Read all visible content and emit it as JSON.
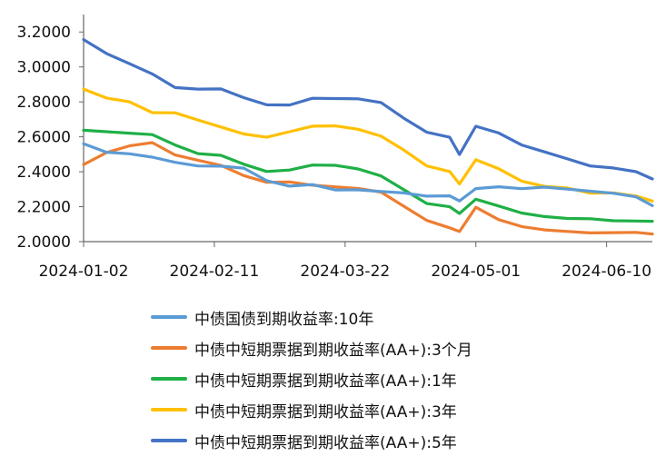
{
  "chart_data": {
    "type": "line",
    "title": "",
    "xlabel": "",
    "ylabel": "",
    "ylim": [
      2.0,
      3.3
    ],
    "yticks": [
      "2.0000",
      "2.2000",
      "2.4000",
      "2.6000",
      "2.8000",
      "3.0000",
      "3.2000"
    ],
    "xticks": [
      "2024-01-02",
      "2024-02-11",
      "2024-03-22",
      "2024-05-01",
      "2024-06-10"
    ],
    "x": [
      "2024-01-02",
      "2024-01-09",
      "2024-01-16",
      "2024-01-23",
      "2024-01-30",
      "2024-02-06",
      "2024-02-13",
      "2024-02-20",
      "2024-02-27",
      "2024-03-05",
      "2024-03-12",
      "2024-03-19",
      "2024-03-26",
      "2024-04-02",
      "2024-04-09",
      "2024-04-16",
      "2024-04-23",
      "2024-04-26",
      "2024-05-01",
      "2024-05-08",
      "2024-05-15",
      "2024-05-22",
      "2024-05-29",
      "2024-06-05",
      "2024-06-12",
      "2024-06-19",
      "2024-06-24"
    ],
    "grid": false,
    "legend_position": "bottom",
    "series": [
      {
        "name": "中债国债到期收益率:10年",
        "color": "#5B9BD5",
        "values": [
          2.56,
          2.51,
          2.5,
          2.48,
          2.45,
          2.43,
          2.43,
          2.42,
          2.35,
          2.32,
          2.33,
          2.3,
          2.3,
          2.29,
          2.28,
          2.26,
          2.26,
          2.23,
          2.3,
          2.31,
          2.3,
          2.31,
          2.3,
          2.29,
          2.28,
          2.26,
          2.21
        ]
      },
      {
        "name": "中债中短期票据到期收益率(AA+):3个月",
        "color": "#ED7D31",
        "values": [
          2.44,
          2.51,
          2.55,
          2.57,
          2.5,
          2.47,
          2.44,
          2.38,
          2.34,
          2.34,
          2.32,
          2.31,
          2.3,
          2.28,
          2.2,
          2.12,
          2.08,
          2.06,
          2.2,
          2.13,
          2.09,
          2.07,
          2.06,
          2.05,
          2.05,
          2.05,
          2.04
        ]
      },
      {
        "name": "中债中短期票据到期收益率(AA+):1年",
        "color": "#1FB046",
        "values": [
          2.64,
          2.63,
          2.62,
          2.61,
          2.55,
          2.5,
          2.49,
          2.44,
          2.4,
          2.41,
          2.44,
          2.44,
          2.42,
          2.38,
          2.3,
          2.22,
          2.2,
          2.16,
          2.24,
          2.2,
          2.16,
          2.14,
          2.13,
          2.13,
          2.12,
          2.12,
          2.12
        ]
      },
      {
        "name": "中债中短期票据到期收益率(AA+):3年",
        "color": "#FFC000",
        "values": [
          2.87,
          2.82,
          2.8,
          2.74,
          2.74,
          2.7,
          2.66,
          2.62,
          2.6,
          2.63,
          2.66,
          2.66,
          2.64,
          2.6,
          2.52,
          2.43,
          2.4,
          2.33,
          2.47,
          2.42,
          2.35,
          2.32,
          2.31,
          2.28,
          2.28,
          2.26,
          2.23
        ]
      },
      {
        "name": "中债中短期票据到期收益率(AA+):5年",
        "color": "#4472C4",
        "values": [
          3.16,
          3.08,
          3.02,
          2.96,
          2.88,
          2.87,
          2.87,
          2.82,
          2.78,
          2.78,
          2.82,
          2.82,
          2.82,
          2.8,
          2.71,
          2.63,
          2.6,
          2.5,
          2.66,
          2.62,
          2.55,
          2.51,
          2.47,
          2.43,
          2.42,
          2.4,
          2.36
        ]
      }
    ]
  }
}
